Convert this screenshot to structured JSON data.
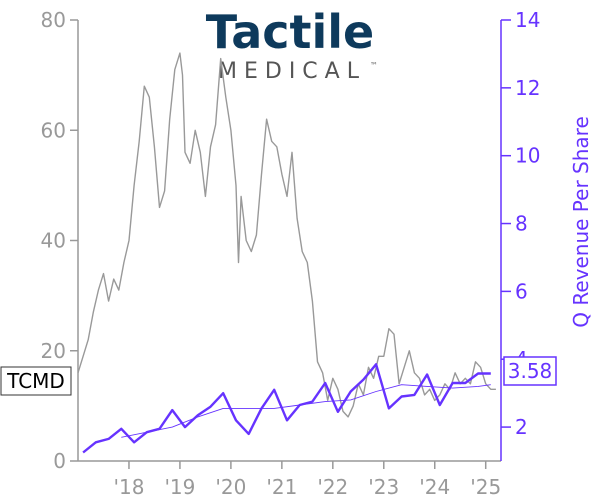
{
  "logo": {
    "name": "Tactile",
    "subtitle": "MEDICAL",
    "trademark": "™",
    "color_name": "#0e3a5c",
    "color_sub": "#555555"
  },
  "chart_data": {
    "type": "line",
    "ticker": "TCMD",
    "last_value_label": "3.58",
    "colors": {
      "price": "#999999",
      "revenue": "#6633ff",
      "left_axis": "#999999",
      "right_axis": "#6633ff"
    },
    "x_ticks": [
      {
        "label": "'18",
        "value": 2018.0
      },
      {
        "label": "'19",
        "value": 2019.0
      },
      {
        "label": "'20",
        "value": 2020.0
      },
      {
        "label": "'21",
        "value": 2021.0
      },
      {
        "label": "'22",
        "value": 2022.0
      },
      {
        "label": "'23",
        "value": 2023.0
      },
      {
        "label": "'24",
        "value": 2024.0
      },
      {
        "label": "'25",
        "value": 2025.0
      }
    ],
    "xlim": [
      2017.0,
      2025.3
    ],
    "y_left": {
      "label": "",
      "ylim": [
        0,
        80
      ],
      "ticks": [
        0,
        20,
        40,
        60,
        80
      ]
    },
    "y_right": {
      "label": "Q Revenue Per Share",
      "ylim": [
        1,
        14
      ],
      "ticks": [
        2,
        4,
        6,
        8,
        10,
        12,
        14
      ]
    },
    "series": [
      {
        "name": "TCMD",
        "axis": "left",
        "x": [
          2017.0,
          2017.1,
          2017.2,
          2017.3,
          2017.4,
          2017.5,
          2017.6,
          2017.7,
          2017.8,
          2017.9,
          2018.0,
          2018.1,
          2018.2,
          2018.3,
          2018.4,
          2018.5,
          2018.6,
          2018.7,
          2018.8,
          2018.9,
          2019.0,
          2019.05,
          2019.1,
          2019.2,
          2019.3,
          2019.4,
          2019.5,
          2019.6,
          2019.7,
          2019.8,
          2019.9,
          2020.0,
          2020.1,
          2020.15,
          2020.2,
          2020.3,
          2020.4,
          2020.5,
          2020.6,
          2020.7,
          2020.8,
          2020.9,
          2021.0,
          2021.1,
          2021.2,
          2021.3,
          2021.4,
          2021.5,
          2021.6,
          2021.7,
          2021.8,
          2021.9,
          2022.0,
          2022.1,
          2022.2,
          2022.3,
          2022.4,
          2022.5,
          2022.6,
          2022.7,
          2022.8,
          2022.9,
          2023.0,
          2023.1,
          2023.2,
          2023.3,
          2023.4,
          2023.5,
          2023.6,
          2023.7,
          2023.8,
          2023.9,
          2024.0,
          2024.1,
          2024.2,
          2024.3,
          2024.4,
          2024.5,
          2024.6,
          2024.7,
          2024.8,
          2024.9,
          2025.0,
          2025.1,
          2025.2
        ],
        "values": [
          16,
          19,
          22,
          27,
          31,
          34,
          29,
          33,
          31,
          36,
          40,
          50,
          58,
          68,
          66,
          57,
          46,
          49,
          62,
          71,
          74,
          70,
          56,
          54,
          60,
          56,
          48,
          57,
          61,
          73,
          66,
          60,
          50,
          36,
          48,
          40,
          38,
          41,
          52,
          62,
          58,
          57,
          52,
          48,
          56,
          44,
          38,
          36,
          29,
          18,
          16,
          11,
          15,
          13,
          9,
          8,
          10,
          14,
          12,
          17,
          15,
          19,
          19,
          24,
          23,
          14,
          17,
          20,
          16,
          15,
          12,
          13,
          11,
          12,
          14,
          13,
          16,
          14,
          15,
          14,
          18,
          17,
          14,
          13,
          13
        ]
      },
      {
        "name": "",
        "axis": "right",
        "x": [
          2017.1,
          2017.35,
          2017.6,
          2017.85,
          2018.1,
          2018.35,
          2018.6,
          2018.85,
          2019.1,
          2019.35,
          2019.6,
          2019.85,
          2020.1,
          2020.35,
          2020.6,
          2020.85,
          2021.1,
          2021.35,
          2021.6,
          2021.85,
          2022.1,
          2022.35,
          2022.6,
          2022.85,
          2023.1,
          2023.35,
          2023.6,
          2023.85,
          2024.1,
          2024.35,
          2024.6,
          2024.85,
          2025.1
        ],
        "values": [
          1.25,
          1.55,
          1.65,
          1.95,
          1.55,
          1.85,
          1.95,
          2.5,
          2.0,
          2.35,
          2.6,
          3.0,
          2.2,
          1.8,
          2.55,
          3.1,
          2.2,
          2.65,
          2.75,
          3.3,
          2.45,
          3.05,
          3.4,
          3.85,
          2.55,
          2.9,
          2.95,
          3.55,
          2.65,
          3.3,
          3.3,
          3.58,
          3.58
        ]
      },
      {
        "name": "",
        "axis": "right",
        "style": "thin",
        "x": [
          2017.85,
          2018.35,
          2018.85,
          2019.35,
          2019.85,
          2020.35,
          2020.85,
          2021.35,
          2021.85,
          2022.35,
          2022.85,
          2023.35,
          2023.85,
          2024.35,
          2024.85,
          2025.1
        ],
        "values": [
          1.7,
          1.85,
          2.0,
          2.3,
          2.55,
          2.55,
          2.55,
          2.65,
          2.75,
          2.8,
          3.05,
          3.25,
          3.2,
          3.15,
          3.2,
          3.25
        ]
      }
    ]
  }
}
